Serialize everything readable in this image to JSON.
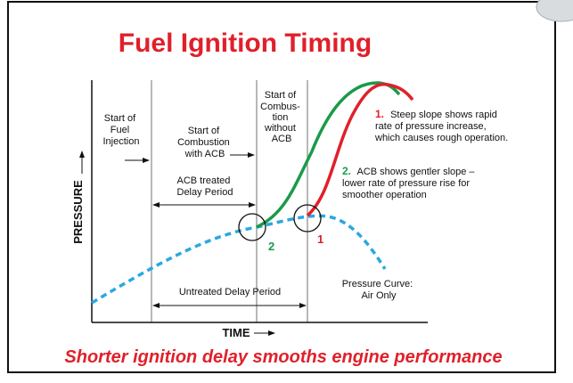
{
  "title": "Fuel Ignition Timing",
  "phases": {
    "fuel_injection": [
      "Start of",
      "Fuel",
      "Injection"
    ],
    "combustion_with_acb": [
      "Start of",
      "Combustion",
      "with ACB"
    ],
    "combustion_without_acb": [
      "Start of",
      "Combus-",
      "tion",
      "without",
      "ACB"
    ]
  },
  "periods": {
    "treated": [
      "ACB treated",
      "Delay Period"
    ],
    "untreated": "Untreated Delay Period"
  },
  "notes": [
    {
      "number": "1.",
      "lines": [
        "Steep slope shows rapid",
        "rate of pressure increase,",
        "which causes rough operation."
      ]
    },
    {
      "number": "2.",
      "lines": [
        "ACB shows gentler slope –",
        "lower rate of pressure rise for",
        "smoother operation"
      ]
    }
  ],
  "markers": {
    "with_acb": "2",
    "without_acb": "1"
  },
  "air_curve": [
    "Pressure Curve:",
    "Air Only"
  ],
  "axes": {
    "y": "PRESSURE",
    "x": "TIME"
  },
  "footer": "Shorter ignition delay smooths engine performance"
}
